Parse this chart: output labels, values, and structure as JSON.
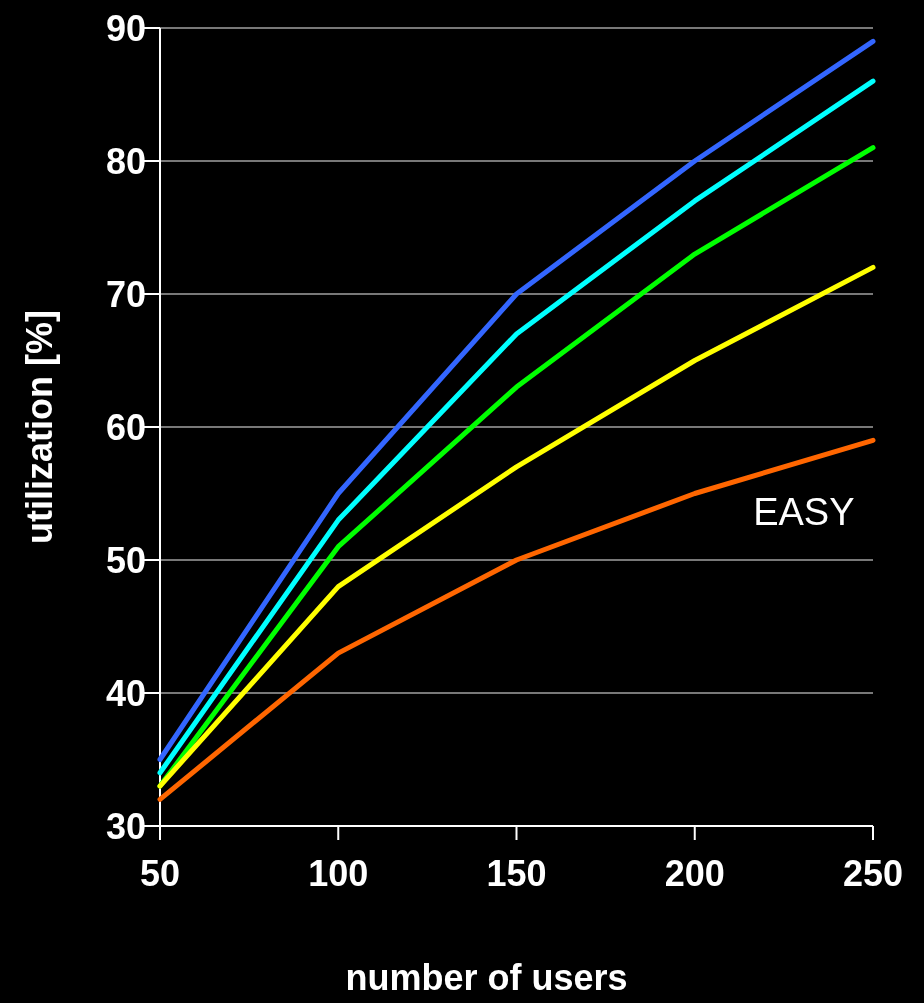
{
  "chart_data": {
    "type": "line",
    "xlabel": "number of users",
    "ylabel": "utilization [%]",
    "x": [
      50,
      100,
      150,
      200,
      250
    ],
    "series": [
      {
        "color": "#3366ff",
        "values": [
          35,
          55,
          70,
          80,
          89
        ]
      },
      {
        "color": "#00ffff",
        "values": [
          34,
          53,
          67,
          77,
          86
        ]
      },
      {
        "color": "#00ff00",
        "values": [
          33,
          51,
          63,
          73,
          81
        ]
      },
      {
        "color": "#ffff00",
        "values": [
          33,
          48,
          57,
          65,
          72
        ]
      },
      {
        "name": "EASY",
        "color": "#ff6600",
        "values": [
          32,
          43,
          50,
          55,
          59
        ]
      }
    ],
    "xlim": [
      50,
      250
    ],
    "xticks": [
      50,
      100,
      150,
      200,
      250
    ],
    "ylim": [
      30,
      90
    ],
    "yticks": [
      30,
      40,
      50,
      60,
      70,
      80,
      90
    ],
    "grid": "y",
    "marker": "none",
    "line_style": "solid"
  }
}
